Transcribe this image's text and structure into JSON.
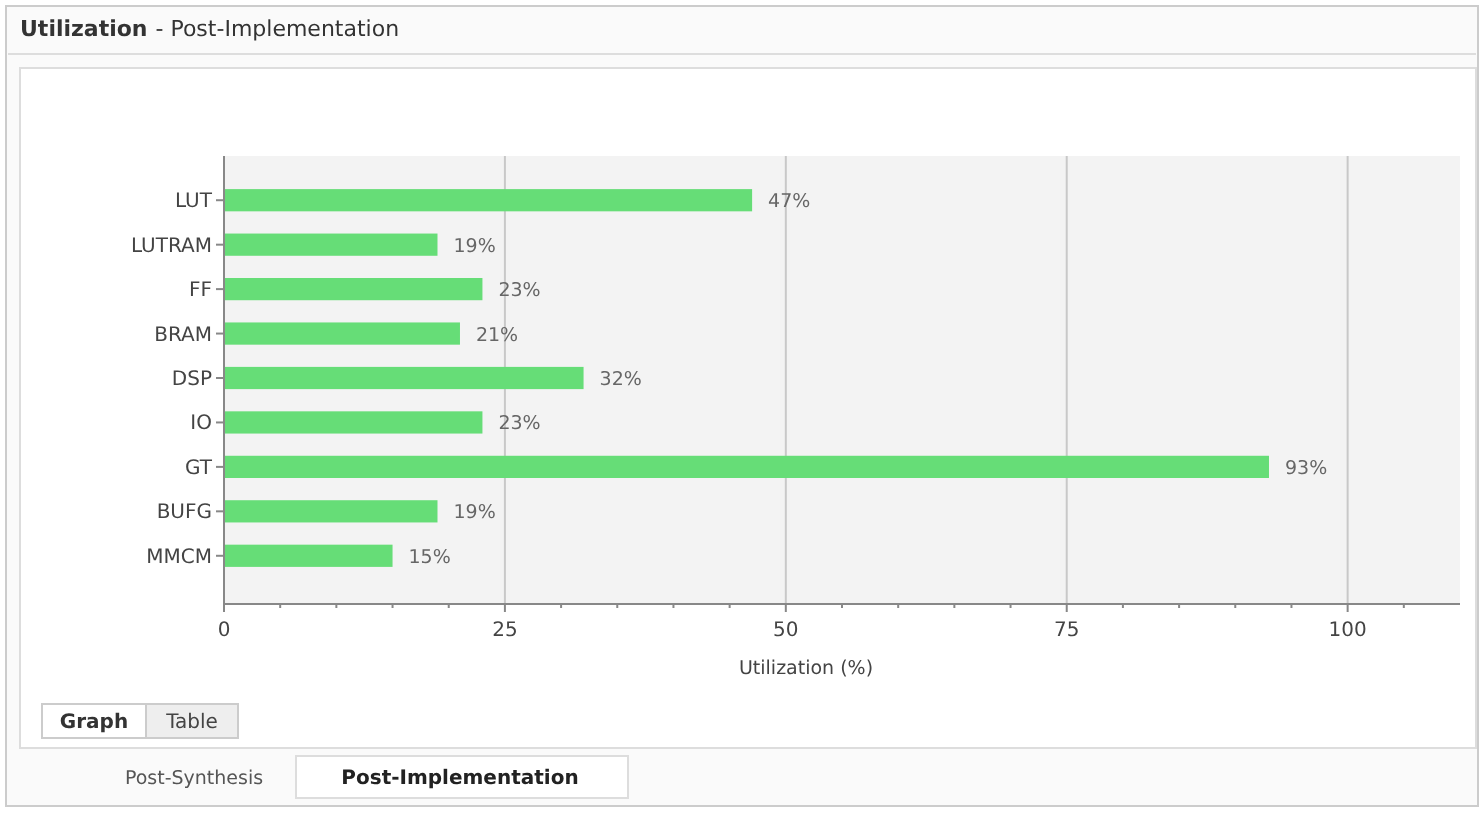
{
  "chart_data": {
    "type": "bar",
    "orientation": "horizontal",
    "title": "Utilization",
    "subtitle": "- Post-Implementation",
    "xlabel": "Utilization (%)",
    "categories": [
      "LUT",
      "LUTRAM",
      "FF",
      "BRAM",
      "DSP",
      "IO",
      "GT",
      "BUFG",
      "MMCM"
    ],
    "values": [
      47,
      19,
      23,
      21,
      32,
      23,
      93,
      19,
      15
    ],
    "value_labels": [
      "47%",
      "19%",
      "23%",
      "21%",
      "32%",
      "23%",
      "93%",
      "19%",
      "15%"
    ],
    "color": "#66dd77",
    "xlim": [
      0,
      110
    ],
    "xticks": [
      0,
      {
        "value": 5,
        "label": null
      },
      {
        "value": 10,
        "label": null
      },
      {
        "value": 15,
        "label": null
      },
      {
        "value": 20,
        "label": null
      },
      25,
      {
        "value": 30,
        "label": null
      },
      {
        "value": 35,
        "label": null
      },
      {
        "value": 40,
        "label": null
      },
      {
        "value": 45,
        "label": null
      },
      50,
      {
        "value": 55,
        "label": null
      },
      {
        "value": 60,
        "label": null
      },
      {
        "value": 65,
        "label": null
      },
      {
        "value": 70,
        "label": null
      },
      75,
      {
        "value": 80,
        "label": null
      },
      {
        "value": 85,
        "label": null
      },
      {
        "value": 90,
        "label": null
      },
      {
        "value": 95,
        "label": null
      },
      100,
      {
        "value": 105,
        "label": null
      }
    ],
    "grid": "x",
    "annotations": [
      "Graph",
      "Table",
      "Post-Synthesis",
      "Post-Implementation"
    ]
  }
}
